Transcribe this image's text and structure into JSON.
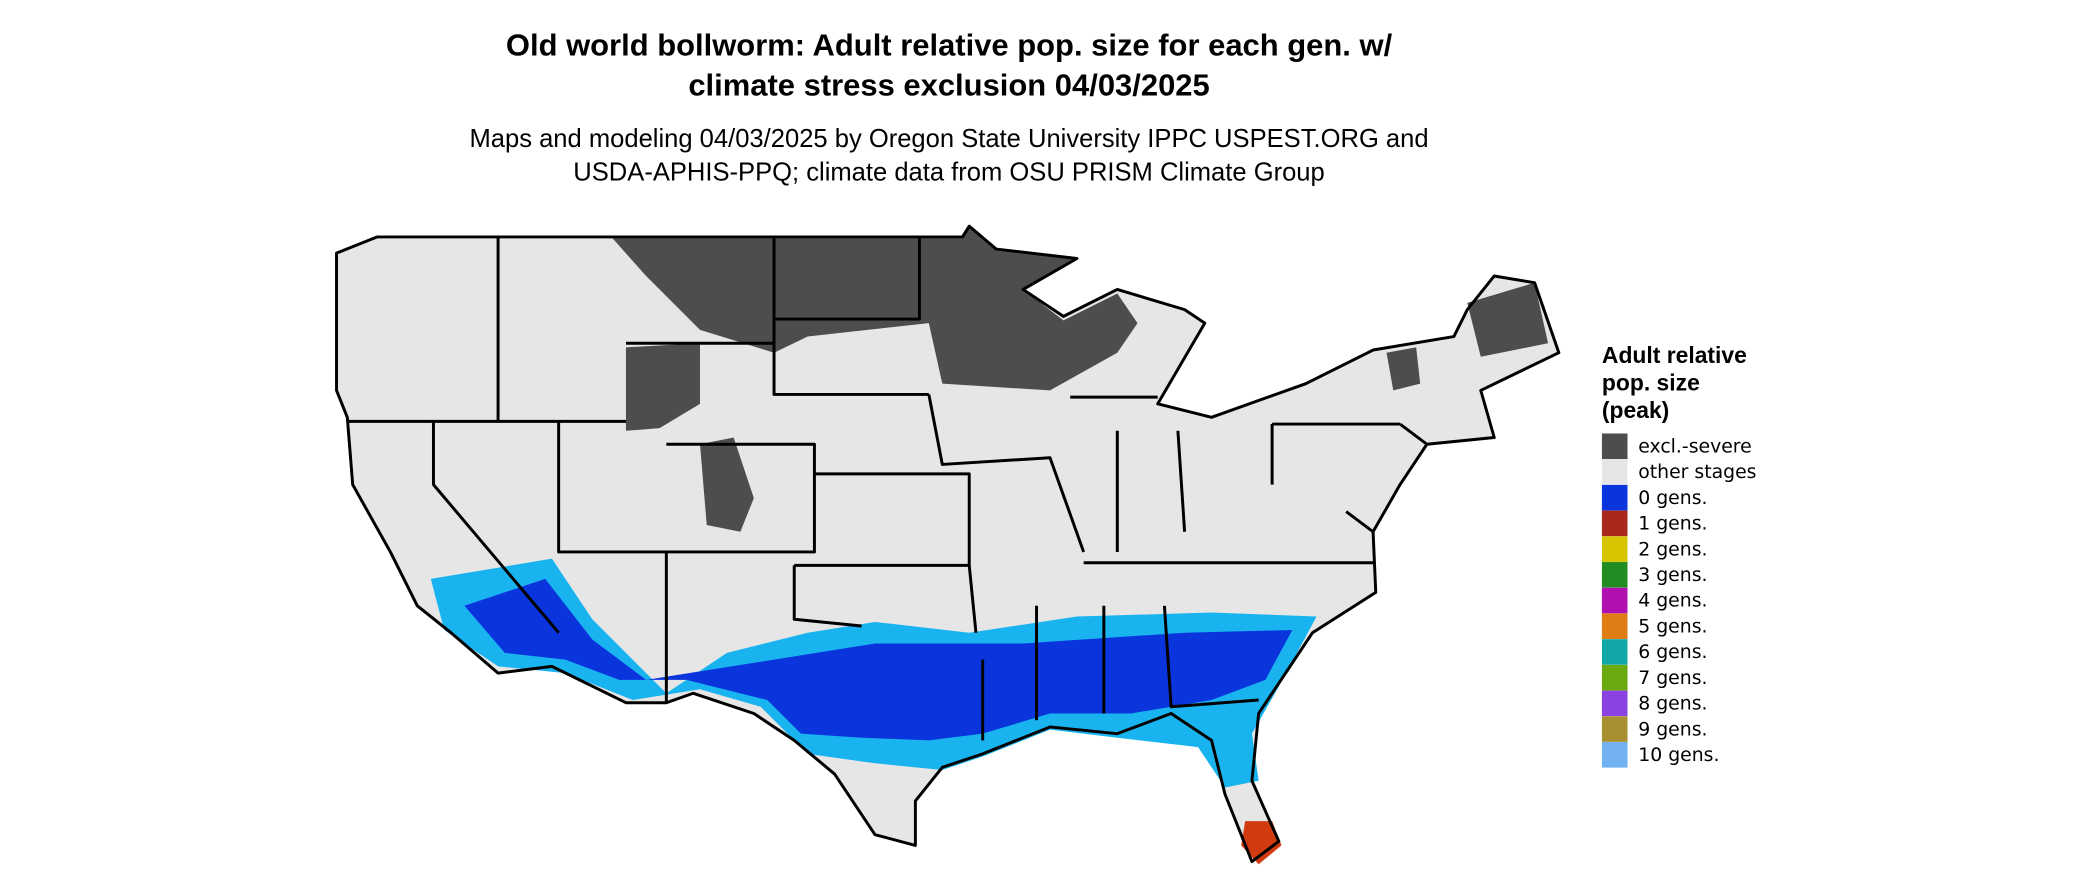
{
  "title": [
    "Old world bollworm: Adult relative pop. size for each gen. w/",
    "climate stress exclusion 04/03/2025"
  ],
  "subtitle": [
    "Maps and modeling 04/03/2025 by Oregon State University IPPC USPEST.ORG and",
    "USDA-APHIS-PPQ; climate data from OSU PRISM Climate Group"
  ],
  "legend": {
    "title": [
      "Adult relative",
      "pop. size",
      "(peak)"
    ],
    "items": [
      {
        "label": "excl.-severe",
        "color": "#4d4d4d"
      },
      {
        "label": "other stages",
        "color": "#e6e6e6"
      },
      {
        "label": "0 gens.",
        "color": "#0a35dc"
      },
      {
        "label": "1 gens.",
        "color": "#a8281c"
      },
      {
        "label": "2 gens.",
        "color": "#d6c400"
      },
      {
        "label": "3 gens.",
        "color": "#228b22"
      },
      {
        "label": "4 gens.",
        "color": "#b010b0"
      },
      {
        "label": "5 gens.",
        "color": "#e07c14"
      },
      {
        "label": "6 gens.",
        "color": "#12a8a8"
      },
      {
        "label": "7 gens.",
        "color": "#6aaa10"
      },
      {
        "label": "8 gens.",
        "color": "#8a42e0"
      },
      {
        "label": "9 gens.",
        "color": "#a89030"
      },
      {
        "label": "10 gens.",
        "color": "#72b2f2"
      }
    ]
  }
}
